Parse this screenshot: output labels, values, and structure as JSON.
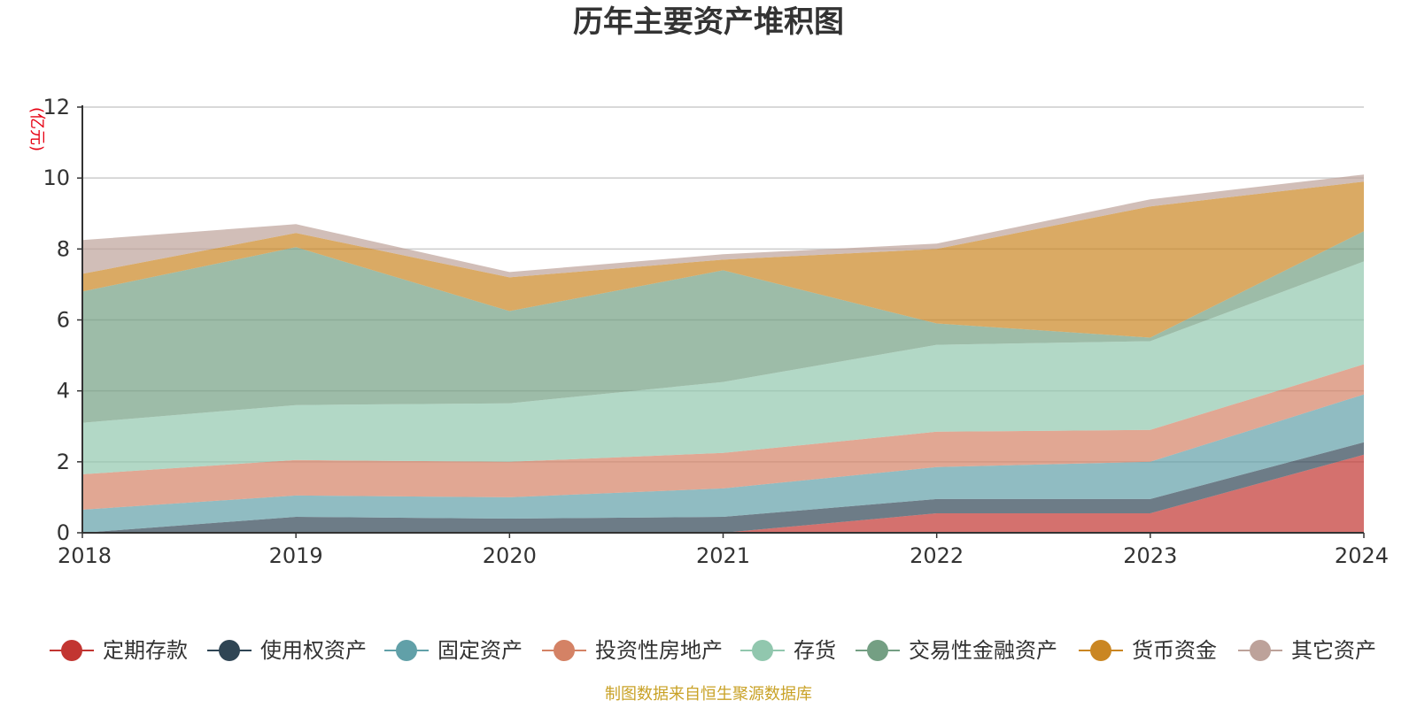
{
  "chart_data": {
    "type": "area",
    "stacked": true,
    "title": "历年主要资产堆积图",
    "unit": "(亿元)",
    "x": [
      "2018",
      "2019",
      "2020",
      "2021",
      "2022",
      "2023",
      "2024"
    ],
    "ylim": [
      0,
      12
    ],
    "yticks": [
      "0",
      "2",
      "4",
      "6",
      "8",
      "10",
      "12"
    ],
    "grid": true,
    "legend_position": "bottom",
    "series": [
      {
        "name": "定期存款",
        "color": "#c23531",
        "values": [
          0,
          0,
          0,
          0,
          0.55,
          0.55,
          2.2
        ]
      },
      {
        "name": "使用权资产",
        "color": "#2f4554",
        "values": [
          0,
          0.45,
          0.4,
          0.45,
          0.4,
          0.4,
          0.35
        ]
      },
      {
        "name": "固定资产",
        "color": "#61a0a8",
        "values": [
          0.65,
          0.6,
          0.6,
          0.8,
          0.9,
          1.05,
          1.35
        ]
      },
      {
        "name": "投资性房地产",
        "color": "#d48265",
        "values": [
          1.0,
          1.0,
          1.0,
          1.0,
          1.0,
          0.9,
          0.85
        ]
      },
      {
        "name": "存货",
        "color": "#91c7ae",
        "values": [
          1.45,
          1.55,
          1.65,
          2.0,
          2.45,
          2.5,
          2.9
        ]
      },
      {
        "name": "交易性金融资产",
        "color": "#749f83",
        "values": [
          3.7,
          4.45,
          2.6,
          3.15,
          0.6,
          0.1,
          0.85
        ]
      },
      {
        "name": "货币资金",
        "color": "#ca8622",
        "values": [
          0.5,
          0.4,
          0.95,
          0.3,
          2.1,
          3.7,
          1.4
        ]
      },
      {
        "name": "其它资产",
        "color": "#bda29a",
        "values": [
          0.95,
          0.25,
          0.15,
          0.15,
          0.15,
          0.2,
          0.2
        ]
      }
    ]
  },
  "footer": {
    "source": "制图数据来自恒生聚源数据库"
  }
}
